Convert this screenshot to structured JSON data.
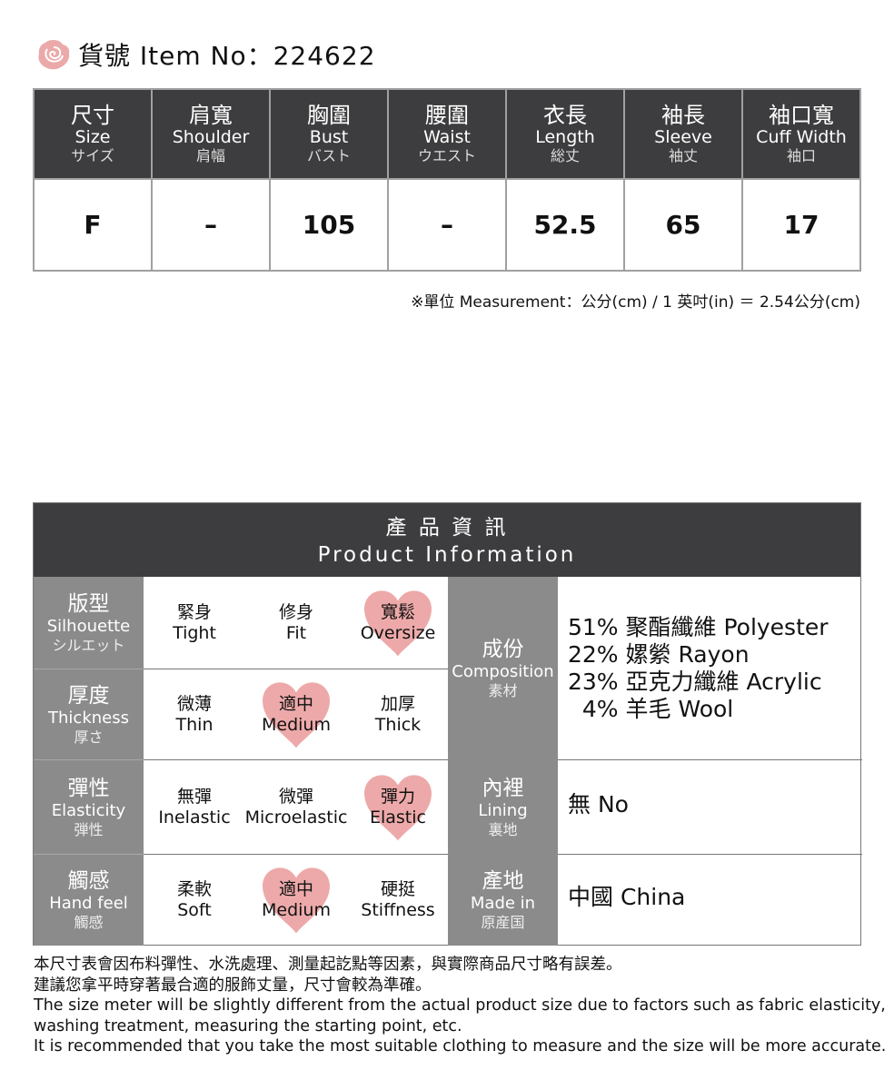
{
  "header": {
    "icon": "rose-icon",
    "label": "貨號 Item No：224622",
    "accent": "#eba9a9"
  },
  "size_table": {
    "columns": [
      {
        "zh": "尺寸",
        "en": "Size",
        "jp": "サイズ"
      },
      {
        "zh": "肩寬",
        "en": "Shoulder",
        "jp": "肩幅"
      },
      {
        "zh": "胸圍",
        "en": "Bust",
        "jp": "バスト"
      },
      {
        "zh": "腰圍",
        "en": "Waist",
        "jp": "ウエスト"
      },
      {
        "zh": "衣長",
        "en": "Length",
        "jp": "総丈"
      },
      {
        "zh": "袖長",
        "en": "Sleeve",
        "jp": "袖丈"
      },
      {
        "zh": "袖口寬",
        "en": "Cuff Width",
        "jp": "袖口"
      }
    ],
    "row": [
      "F",
      "–",
      "105",
      "–",
      "52.5",
      "65",
      "17"
    ],
    "note": "※單位 Measurement：公分(cm) / 1 英吋(in) ＝ 2.54公分(cm)"
  },
  "product_info": {
    "title_zh": "產 品 資 訊",
    "title_en": "Product Information",
    "attributes": [
      {
        "zh": "版型",
        "en": "Silhouette",
        "jp": "シルエット",
        "options": [
          {
            "zh": "緊身",
            "en": "Tight"
          },
          {
            "zh": "修身",
            "en": "Fit"
          },
          {
            "zh": "寬鬆",
            "en": "Oversize"
          }
        ],
        "selected": 2
      },
      {
        "zh": "厚度",
        "en": "Thickness",
        "jp": "厚さ",
        "options": [
          {
            "zh": "微薄",
            "en": "Thin"
          },
          {
            "zh": "適中",
            "en": "Medium"
          },
          {
            "zh": "加厚",
            "en": "Thick"
          }
        ],
        "selected": 1
      },
      {
        "zh": "彈性",
        "en": "Elasticity",
        "jp": "弾性",
        "options": [
          {
            "zh": "無彈",
            "en": "Inelastic"
          },
          {
            "zh": "微彈",
            "en": "Microelastic"
          },
          {
            "zh": "彈力",
            "en": "Elastic"
          }
        ],
        "selected": 2
      },
      {
        "zh": "觸感",
        "en": "Hand feel",
        "jp": "觸感",
        "options": [
          {
            "zh": "柔軟",
            "en": "Soft"
          },
          {
            "zh": "適中",
            "en": "Medium"
          },
          {
            "zh": "硬挺",
            "en": "Stiffness"
          }
        ],
        "selected": 1
      }
    ],
    "composition": {
      "zh": "成份",
      "en": "Composition",
      "jp": "素材",
      "lines": [
        "51% 聚酯纖維 Polyester",
        "22% 嫘縈 Rayon",
        "23% 亞克力纖維 Acrylic",
        "  4% 羊毛 Wool"
      ]
    },
    "lining": {
      "zh": "內裡",
      "en": "Lining",
      "jp": "裏地",
      "value": "無 No"
    },
    "origin": {
      "zh": "產地",
      "en": "Made in",
      "jp": "原産国",
      "value": "中國 China"
    }
  },
  "footer": [
    "本尺寸表會因布料彈性、水洗處理、測量起訖點等因素，與實際商品尺寸略有誤差。",
    "建議您拿平時穿著最合適的服飾丈量，尺寸會較為準確。",
    "The size meter will be slightly different from the actual product size due to factors such as fabric elasticity,",
    "washing treatment, measuring the starting point, etc.",
    "It is recommended that you take the most suitable clothing to measure and the size will be more accurate."
  ]
}
